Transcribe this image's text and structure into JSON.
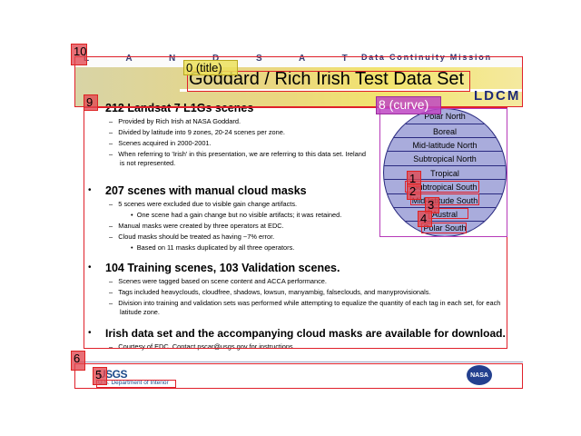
{
  "header": {
    "landsat_text": "L A N D S A T",
    "mission_text": "Data Continuity Mission",
    "title": "Goddard / Rich Irish Test Data Set",
    "ldcm_text": "LDCM"
  },
  "sections": [
    {
      "heading": "212 Landsat 7 L1Gs scenes",
      "items": [
        "Provided by Rich Irish at NASA Goddard.",
        "Divided by latitude into 9 zones, 20-24 scenes per zone.",
        "Scenes acquired in 2000-2001.",
        "When referring to 'Irish' in this presentation, we are referring to this data set.  Ireland is not represented."
      ]
    },
    {
      "heading": "207 scenes with manual cloud masks",
      "items": [
        "5 scenes were excluded due to visible gain change artifacts.",
        "One scene had a gain change but no visible artifacts; it was retained.",
        "Manual masks were created by three operators at EDC.",
        "Cloud masks should be treated as having ~7% error.",
        "Based on 11 masks duplicated by all three operators."
      ]
    },
    {
      "heading": "104 Training scenes, 103 Validation scenes.",
      "items": [
        "Scenes were tagged based on scene content and ACCA performance.",
        "Tags included heavyclouds, cloudfree, shadows, lowsun, manyambig, falseclouds, and manyprovisionals.",
        "Division into training and validation sets was performed while attempting to equalize the quantity of each tag in each set, for each latitude zone."
      ]
    },
    {
      "heading": "Irish data set and the accompanying cloud masks are available for download.",
      "items": [
        "Courtesy of EDC.  Contact pscar@usgs.gov for instructions."
      ]
    }
  ],
  "zones": [
    "Polar North",
    "Boreal",
    "Mid-latitude North",
    "Subtropical North",
    "Tropical",
    "Subtropical South",
    "Mid-latitude South",
    "Austral",
    "Polar South"
  ],
  "footer": {
    "usgs": "USGS",
    "dept": "U.S. Department of Interior",
    "nasa": "NASA"
  },
  "annotations": {
    "title_tag": "0 (title)",
    "curve_tag": "8 (curve)",
    "tag_1": "1",
    "tag_2": "2",
    "tag_3": "3",
    "tag_4": "4",
    "tag_5": "5",
    "tag_6": "6",
    "tag_9": "9",
    "tag_10": "10"
  },
  "colors": {
    "annotation_red": "#e0202a",
    "annotation_magenta": "#b63ab8",
    "zone_fill": "#a9acdc",
    "zone_outline": "#2a2a80"
  }
}
